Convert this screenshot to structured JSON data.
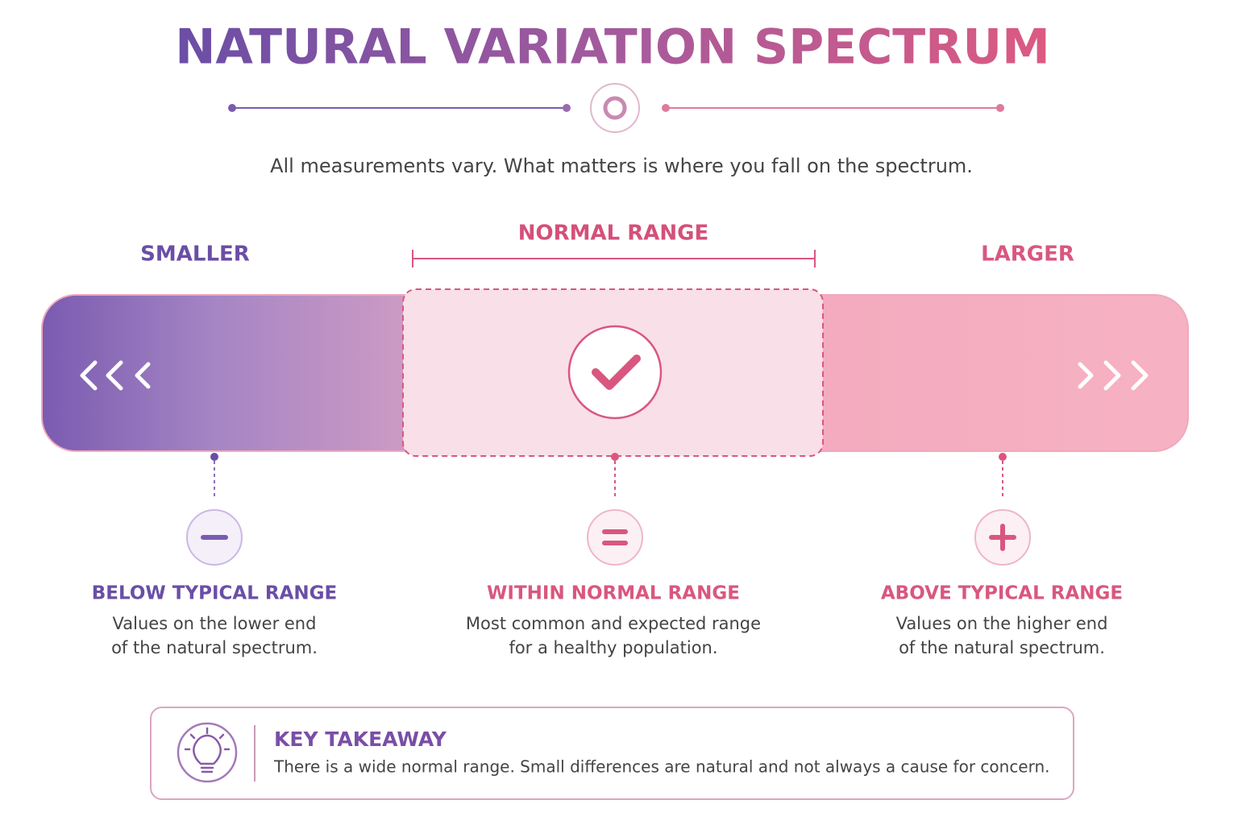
{
  "title": "NATURAL VARIATION SPECTRUM",
  "subtitle": "All measurements vary. What matters is where you fall on the spectrum.",
  "spectrum": {
    "left_label": "SMALLER",
    "center_label": "NORMAL RANGE",
    "right_label": "LARGER"
  },
  "columns": [
    {
      "heading": "BELOW TYPICAL RANGE",
      "lines": [
        "Values on the lower end",
        "of the natural spectrum."
      ]
    },
    {
      "heading": "WITHIN NORMAL RANGE",
      "lines": [
        "Most common and expected range",
        "for a healthy population."
      ]
    },
    {
      "heading": "ABOVE TYPICAL RANGE",
      "lines": [
        "Values on the higher end",
        "of the natural spectrum."
      ]
    }
  ],
  "takeaway": {
    "heading": "KEY TAKEAWAY",
    "text": "There is a wide normal range. Small differences are natural and not always a cause for concern."
  }
}
